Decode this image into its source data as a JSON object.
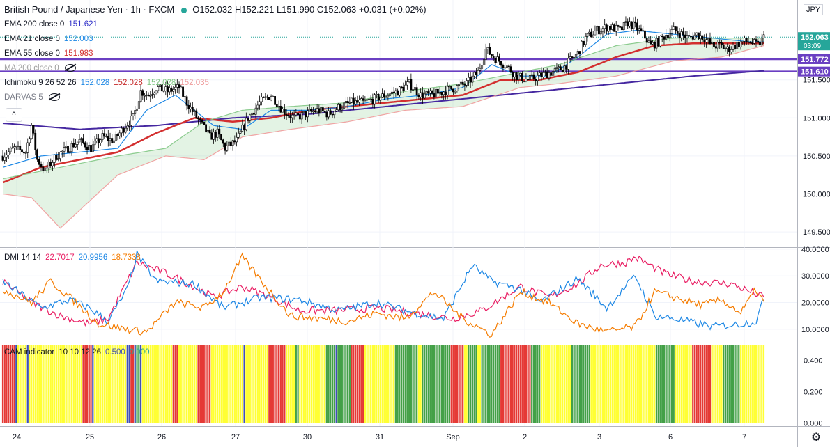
{
  "header": {
    "symbol": "British Pound / Japanese Yen · 1h · FXCM",
    "ohlc": "O152.032 H152.221 L151.990 C152.063 +0.031 (+0.02%)",
    "currency": "JPY"
  },
  "indicators": [
    {
      "label": "EMA 200 close 0",
      "value": "151.621",
      "color": "#3030c8"
    },
    {
      "label": "EMA 21 close 0",
      "value": "152.003",
      "color": "#1e88e5"
    },
    {
      "label": "EMA 55 close 0",
      "value": "151.983",
      "color": "#d32f2f"
    },
    {
      "label": "MA 200 close 0",
      "value": "",
      "color": "#9e9e9e"
    },
    {
      "label": "Ichimoku 9 26 52 26",
      "values": [
        "152.028",
        "152.028",
        "152.028",
        "152.035"
      ],
      "colors": [
        "#1e88e5",
        "#c62828",
        "#81c784",
        "#ef9a9a"
      ]
    },
    {
      "label": "DARVAS 5",
      "value": "",
      "color": "#787b86"
    }
  ],
  "ui": {
    "collapse_icon": "^",
    "gear_icon": "⚙"
  },
  "chart_data": [
    {
      "type": "candlestick",
      "title": "British Pound / Japanese Yen · 1h · FXCM",
      "y_ticks": [
        "149.500",
        "150.000",
        "150.500",
        "151.000",
        "151.500"
      ],
      "ylim": [
        149.3,
        152.55
      ],
      "x_ticks": [
        "24",
        "25",
        "26",
        "27",
        "30",
        "31",
        "Sep",
        "2",
        "3",
        "6",
        "7"
      ],
      "price_labels": [
        {
          "value": "152.063",
          "sub": "03:09",
          "color": "#26a69a"
        },
        {
          "value": "151.772",
          "color": "#6a3fc2"
        },
        {
          "value": "151.610",
          "color": "#6a3fc2"
        }
      ],
      "horizontal_lines": [
        151.772,
        151.61
      ],
      "close_anchors": [
        [
          0,
          150.5
        ],
        [
          6,
          150.6
        ],
        [
          12,
          150.55
        ],
        [
          15,
          150.9
        ],
        [
          18,
          150.45
        ],
        [
          22,
          150.3
        ],
        [
          28,
          150.5
        ],
        [
          34,
          150.6
        ],
        [
          40,
          150.7
        ],
        [
          46,
          150.6
        ],
        [
          52,
          150.75
        ],
        [
          58,
          150.7
        ],
        [
          64,
          150.9
        ],
        [
          68,
          151.0
        ],
        [
          72,
          151.35
        ],
        [
          76,
          151.3
        ],
        [
          80,
          151.4
        ],
        [
          86,
          151.35
        ],
        [
          92,
          151.4
        ],
        [
          96,
          151.2
        ],
        [
          100,
          151.05
        ],
        [
          104,
          150.9
        ],
        [
          108,
          150.75
        ],
        [
          112,
          150.8
        ],
        [
          116,
          150.6
        ],
        [
          122,
          150.7
        ],
        [
          128,
          151.0
        ],
        [
          134,
          151.2
        ],
        [
          140,
          151.3
        ],
        [
          146,
          151.1
        ],
        [
          152,
          151.0
        ],
        [
          158,
          151.05
        ],
        [
          164,
          151.1
        ],
        [
          170,
          151.05
        ],
        [
          176,
          151.15
        ],
        [
          182,
          151.2
        ],
        [
          188,
          151.2
        ],
        [
          194,
          151.25
        ],
        [
          200,
          151.3
        ],
        [
          206,
          151.35
        ],
        [
          212,
          151.45
        ],
        [
          218,
          151.3
        ],
        [
          224,
          151.3
        ],
        [
          230,
          151.35
        ],
        [
          236,
          151.4
        ],
        [
          242,
          151.45
        ],
        [
          248,
          151.6
        ],
        [
          252,
          151.9
        ],
        [
          256,
          151.8
        ],
        [
          262,
          151.7
        ],
        [
          268,
          151.55
        ],
        [
          274,
          151.5
        ],
        [
          280,
          151.55
        ],
        [
          286,
          151.6
        ],
        [
          292,
          151.65
        ],
        [
          296,
          151.75
        ],
        [
          300,
          151.85
        ],
        [
          304,
          152.05
        ],
        [
          310,
          152.15
        ],
        [
          316,
          152.2
        ],
        [
          322,
          152.15
        ],
        [
          326,
          152.25
        ],
        [
          330,
          152.2
        ],
        [
          334,
          152.1
        ],
        [
          338,
          151.95
        ],
        [
          342,
          152.0
        ],
        [
          346,
          152.1
        ],
        [
          350,
          152.15
        ],
        [
          354,
          152.1
        ],
        [
          358,
          152.05
        ],
        [
          362,
          152.1
        ],
        [
          366,
          152.05
        ],
        [
          370,
          151.95
        ],
        [
          374,
          151.95
        ],
        [
          378,
          151.9
        ],
        [
          382,
          151.95
        ],
        [
          386,
          152.0
        ],
        [
          390,
          152.0
        ],
        [
          394,
          151.95
        ],
        [
          397,
          152.06
        ]
      ],
      "series": [
        {
          "name": "EMA 200",
          "color": "#4527a0",
          "anchors": [
            [
              0,
              150.93
            ],
            [
              40,
              150.85
            ],
            [
              80,
              150.9
            ],
            [
              120,
              151.0
            ],
            [
              160,
              151.05
            ],
            [
              200,
              151.15
            ],
            [
              240,
              151.25
            ],
            [
              280,
              151.35
            ],
            [
              320,
              151.45
            ],
            [
              360,
              151.55
            ],
            [
              397,
              151.62
            ]
          ]
        },
        {
          "name": "EMA 55",
          "color": "#d32f2f",
          "anchors": [
            [
              0,
              150.15
            ],
            [
              20,
              150.35
            ],
            [
              40,
              150.45
            ],
            [
              60,
              150.55
            ],
            [
              80,
              150.8
            ],
            [
              100,
              151.0
            ],
            [
              120,
              150.95
            ],
            [
              140,
              151.0
            ],
            [
              160,
              151.1
            ],
            [
              180,
              151.15
            ],
            [
              200,
              151.2
            ],
            [
              220,
              151.25
            ],
            [
              240,
              151.3
            ],
            [
              260,
              151.5
            ],
            [
              280,
              151.5
            ],
            [
              300,
              151.6
            ],
            [
              320,
              151.8
            ],
            [
              340,
              151.95
            ],
            [
              360,
              151.98
            ],
            [
              380,
              151.98
            ],
            [
              397,
              151.98
            ]
          ]
        },
        {
          "name": "EMA 21",
          "color": "#1e88e5",
          "anchors": [
            [
              0,
              150.35
            ],
            [
              20,
              150.5
            ],
            [
              40,
              150.55
            ],
            [
              60,
              150.6
            ],
            [
              75,
              151.1
            ],
            [
              90,
              151.3
            ],
            [
              110,
              150.9
            ],
            [
              125,
              150.85
            ],
            [
              140,
              151.1
            ],
            [
              160,
              151.1
            ],
            [
              180,
              151.15
            ],
            [
              200,
              151.25
            ],
            [
              220,
              151.3
            ],
            [
              240,
              151.4
            ],
            [
              255,
              151.7
            ],
            [
              270,
              151.55
            ],
            [
              285,
              151.55
            ],
            [
              300,
              151.8
            ],
            [
              315,
              152.1
            ],
            [
              330,
              152.15
            ],
            [
              350,
              152.1
            ],
            [
              370,
              152.05
            ],
            [
              390,
              152.0
            ],
            [
              397,
              152.0
            ]
          ]
        },
        {
          "name": "Ichimoku Span A",
          "color": "#81c784",
          "anchors": [
            [
              0,
              150.2
            ],
            [
              30,
              150.35
            ],
            [
              60,
              150.5
            ],
            [
              85,
              150.6
            ],
            [
              105,
              150.95
            ],
            [
              125,
              151.1
            ],
            [
              150,
              151.15
            ],
            [
              180,
              151.2
            ],
            [
              210,
              151.35
            ],
            [
              240,
              151.45
            ],
            [
              270,
              151.6
            ],
            [
              290,
              151.7
            ],
            [
              320,
              151.95
            ],
            [
              350,
              152.05
            ],
            [
              375,
              152.05
            ],
            [
              397,
              152.05
            ]
          ]
        },
        {
          "name": "Ichimoku Span B",
          "color": "#ef9a9a",
          "anchors": [
            [
              0,
              150.0
            ],
            [
              15,
              149.95
            ],
            [
              30,
              149.55
            ],
            [
              60,
              150.25
            ],
            [
              85,
              150.5
            ],
            [
              105,
              150.45
            ],
            [
              125,
              150.75
            ],
            [
              150,
              150.85
            ],
            [
              180,
              150.95
            ],
            [
              210,
              151.1
            ],
            [
              240,
              151.15
            ],
            [
              270,
              151.4
            ],
            [
              290,
              151.45
            ],
            [
              320,
              151.55
            ],
            [
              350,
              151.75
            ],
            [
              375,
              151.8
            ],
            [
              397,
              151.95
            ]
          ]
        }
      ]
    },
    {
      "type": "line",
      "title": "DMI 14 14",
      "values": [
        "22.7017",
        "20.9956",
        "18.7338"
      ],
      "y_ticks": [
        "10.0000",
        "20.0000",
        "30.0000",
        "40.0000"
      ],
      "ylim": [
        5,
        40.5
      ],
      "series": [
        {
          "name": "+DI",
          "color": "#e91e63",
          "anchors": [
            [
              0,
              28
            ],
            [
              15,
              20
            ],
            [
              30,
              15
            ],
            [
              45,
              12
            ],
            [
              55,
              14
            ],
            [
              70,
              35
            ],
            [
              85,
              31
            ],
            [
              100,
              26
            ],
            [
              110,
              22
            ],
            [
              125,
              26
            ],
            [
              140,
              22
            ],
            [
              155,
              17
            ],
            [
              175,
              17
            ],
            [
              195,
              18
            ],
            [
              215,
              16
            ],
            [
              235,
              14
            ],
            [
              250,
              17
            ],
            [
              270,
              26
            ],
            [
              285,
              22
            ],
            [
              300,
              27
            ],
            [
              312,
              34
            ],
            [
              325,
              35
            ],
            [
              330,
              37
            ],
            [
              345,
              31
            ],
            [
              360,
              28
            ],
            [
              380,
              27
            ],
            [
              397,
              22
            ]
          ]
        },
        {
          "name": "-DI",
          "color": "#1e88e5",
          "anchors": [
            [
              0,
              28
            ],
            [
              10,
              23
            ],
            [
              20,
              18
            ],
            [
              35,
              21
            ],
            [
              45,
              18
            ],
            [
              55,
              13
            ],
            [
              65,
              25
            ],
            [
              70,
              38
            ],
            [
              80,
              28
            ],
            [
              100,
              27
            ],
            [
              115,
              18
            ],
            [
              135,
              22
            ],
            [
              155,
              21
            ],
            [
              175,
              17
            ],
            [
              195,
              20
            ],
            [
              215,
              16
            ],
            [
              230,
              14
            ],
            [
              245,
              34
            ],
            [
              255,
              28
            ],
            [
              270,
              25
            ],
            [
              280,
              20
            ],
            [
              300,
              29
            ],
            [
              315,
              18
            ],
            [
              330,
              30
            ],
            [
              340,
              15
            ],
            [
              350,
              14
            ],
            [
              370,
              11
            ],
            [
              385,
              12
            ],
            [
              393,
              13
            ],
            [
              397,
              21
            ]
          ]
        },
        {
          "name": "ADX",
          "color": "#f57c00",
          "anchors": [
            [
              0,
              25
            ],
            [
              15,
              20
            ],
            [
              25,
              28
            ],
            [
              35,
              22
            ],
            [
              50,
              12
            ],
            [
              65,
              10
            ],
            [
              75,
              9
            ],
            [
              90,
              20
            ],
            [
              105,
              18
            ],
            [
              115,
              24
            ],
            [
              125,
              37
            ],
            [
              135,
              28
            ],
            [
              150,
              15
            ],
            [
              165,
              14
            ],
            [
              180,
              13
            ],
            [
              195,
              16
            ],
            [
              210,
              14
            ],
            [
              225,
              24
            ],
            [
              240,
              14
            ],
            [
              255,
              8
            ],
            [
              270,
              24
            ],
            [
              285,
              20
            ],
            [
              300,
              12
            ],
            [
              315,
              9
            ],
            [
              330,
              11
            ],
            [
              340,
              24
            ],
            [
              355,
              21
            ],
            [
              365,
              19
            ],
            [
              375,
              21
            ],
            [
              385,
              16
            ],
            [
              393,
              25
            ],
            [
              397,
              20
            ]
          ]
        }
      ]
    },
    {
      "type": "bar",
      "title": "CAM indicator",
      "params": "10 10 12 26",
      "values": [
        "0.500",
        "0.000"
      ],
      "y_ticks": [
        "0.000",
        "0.200",
        "0.400"
      ],
      "ylim": [
        -0.02,
        0.51
      ],
      "colors": {
        "up": "#43a047",
        "down": "#e53935",
        "neutral": "#ffff33",
        "other": "#3f51b5"
      },
      "bar_value": 0.5
    }
  ]
}
